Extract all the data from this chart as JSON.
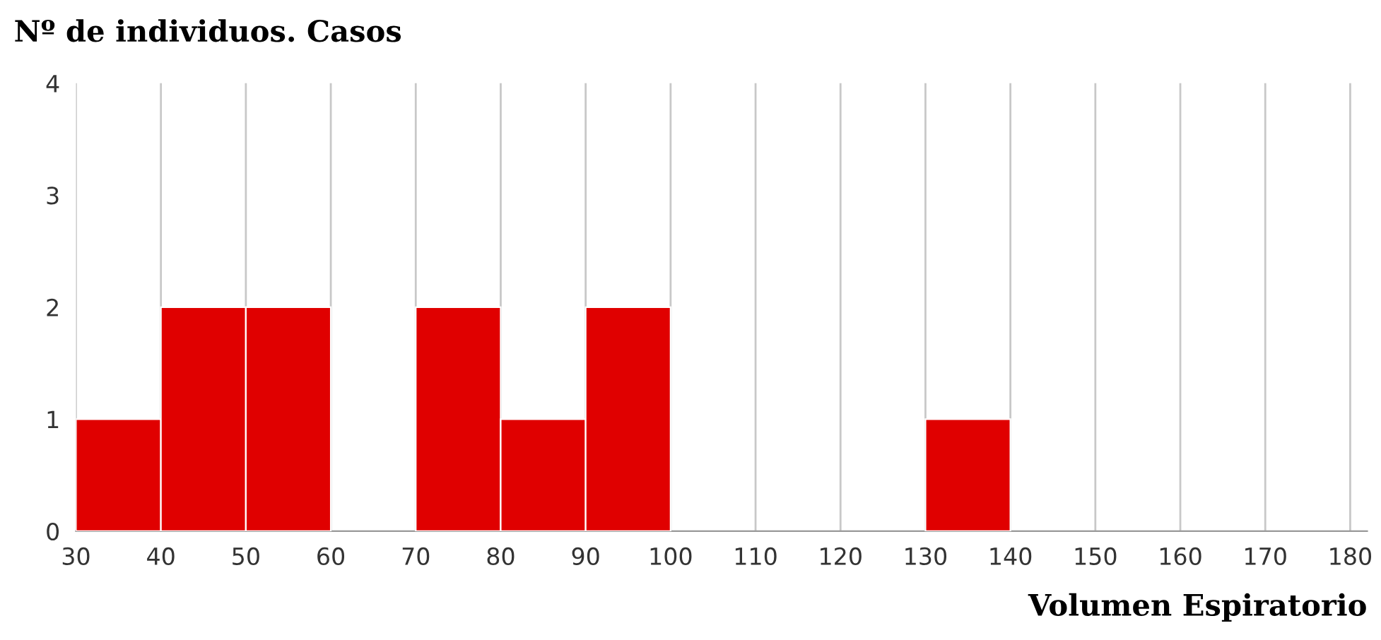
{
  "chart_data": {
    "type": "histogram",
    "title": "Nº de individuos. Casos",
    "xlabel": "Volumen Espiratorio",
    "bins": [
      30,
      40,
      50,
      60,
      70,
      80,
      90,
      100,
      110,
      120,
      130,
      140,
      150,
      160,
      170,
      180
    ],
    "values": [
      1,
      2,
      2,
      0,
      2,
      1,
      2,
      0,
      0,
      0,
      1,
      0,
      0,
      0,
      0
    ],
    "color": "#e00000",
    "xlim": [
      30,
      182
    ],
    "xticks": [
      30,
      40,
      50,
      60,
      70,
      80,
      90,
      100,
      110,
      120,
      130,
      140,
      150,
      160,
      170,
      180
    ],
    "ylim": [
      0,
      4
    ],
    "yticks": [
      0,
      1,
      2,
      3,
      4
    ],
    "grid": "x"
  }
}
